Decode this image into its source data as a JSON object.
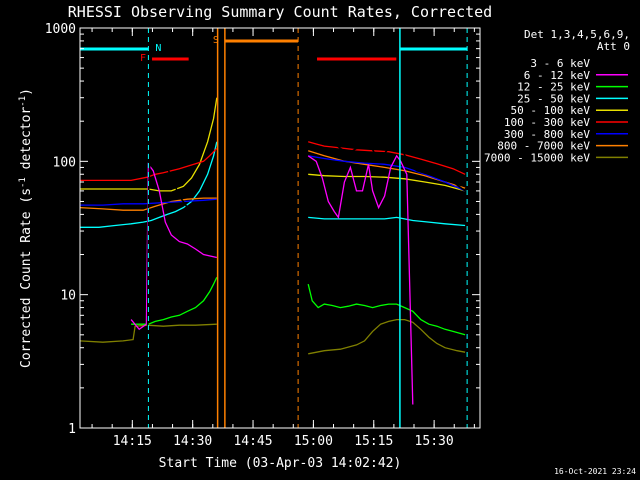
{
  "chart_data": {
    "type": "line",
    "title": "RHESSI Observing Summary Count Rates, Corrected",
    "xlabel": "Start Time (03-Apr-03 14:02:42)",
    "ylabel_main": "Corrected Count Rate (s",
    "ylabel_sup1": "-1",
    "ylabel_mid": " detector",
    "ylabel_sup2": "-1",
    "ylabel_end": ")",
    "yscale": "log",
    "ylim": [
      1,
      1000
    ],
    "xlim_minutes": [
      -0.7,
      98.7
    ],
    "x_ticks": [
      {
        "minute": 12.3,
        "label": "14:15"
      },
      {
        "minute": 27.3,
        "label": "14:30"
      },
      {
        "minute": 42.3,
        "label": "14:45"
      },
      {
        "minute": 57.3,
        "label": "15:00"
      },
      {
        "minute": 72.3,
        "label": "15:15"
      },
      {
        "minute": 87.3,
        "label": "15:30"
      }
    ],
    "y_ticks": [
      {
        "value": 1,
        "label": "1"
      },
      {
        "value": 10,
        "label": "10"
      },
      {
        "value": 100,
        "label": "100"
      },
      {
        "value": 1000,
        "label": "1000"
      }
    ],
    "legend": {
      "header1": "Det 1,3,4,5,6,9,",
      "header2": "Att 0",
      "entries": [
        {
          "label": "3 - 6 keV",
          "color": "#000000"
        },
        {
          "label": "6 - 12 keV",
          "color": "#ff00ff"
        },
        {
          "label": "12 - 25 keV",
          "color": "#00ff00"
        },
        {
          "label": "25 - 50 keV",
          "color": "#00ffff"
        },
        {
          "label": "50 - 100 keV",
          "color": "#e8e000"
        },
        {
          "label": "100 - 300 keV",
          "color": "#ff0000"
        },
        {
          "label": "300 - 800 keV",
          "color": "#0000ff"
        },
        {
          "label": "800 - 7000 keV",
          "color": "#ff8000"
        },
        {
          "label": "7000 - 15000 keV",
          "color": "#808000"
        }
      ]
    },
    "flags": [
      {
        "label": "N",
        "color": "#00ffff",
        "start": -0.7,
        "end": 16.3
      },
      {
        "label": "N",
        "color": "#00ffff",
        "start": 78.8,
        "end": 95.5
      },
      {
        "label": "F",
        "color": "#ff0000",
        "start": 17.2,
        "end": 26.3
      },
      {
        "label": "F",
        "color": "#ff0000",
        "start": 58.2,
        "end": 77.9
      },
      {
        "label": "S",
        "color": "#ff8000",
        "start": 35.3,
        "end": 53.5
      }
    ],
    "vlines": [
      {
        "minute": 16.3,
        "color": "#00ffff",
        "dashed": true
      },
      {
        "minute": 95.5,
        "color": "#00ffff",
        "dashed": true
      },
      {
        "minute": 53.5,
        "color": "#ff8000",
        "dashed": true
      },
      {
        "minute": 33.5,
        "color": "#ff8000",
        "dashed": false
      },
      {
        "minute": 35.3,
        "color": "#ff8000",
        "dashed": false
      },
      {
        "minute": 78.8,
        "color": "#00ffff",
        "dashed": false
      }
    ],
    "series": [
      {
        "name": "3 - 6 keV",
        "color": "#000000",
        "points": [
          [
            16.0,
            1.2
          ],
          [
            16.3,
            55
          ],
          [
            17.0,
            170
          ],
          [
            18.0,
            140
          ],
          [
            19.5,
            115
          ],
          [
            21.0,
            90
          ],
          [
            22.5,
            70
          ],
          [
            24.0,
            55
          ],
          [
            26.0,
            45
          ],
          [
            28.0,
            42
          ],
          [
            30.0,
            38
          ],
          [
            32.5,
            35
          ],
          [
            33.3,
            30
          ],
          [
            56.0,
            205
          ],
          [
            57.0,
            175
          ],
          [
            58.5,
            160
          ],
          [
            60.0,
            150
          ],
          [
            62.0,
            140
          ],
          [
            64.0,
            125
          ],
          [
            66.0,
            115
          ],
          [
            68.0,
            125
          ],
          [
            70.0,
            155
          ],
          [
            71.0,
            140
          ],
          [
            72.5,
            115
          ],
          [
            74.0,
            105
          ],
          [
            75.5,
            120
          ],
          [
            77.0,
            135
          ],
          [
            78.0,
            140
          ],
          [
            79.0,
            130
          ],
          [
            81.0,
            95
          ],
          [
            83.0,
            85
          ],
          [
            86.0,
            80
          ],
          [
            89.0,
            75
          ],
          [
            92.0,
            70
          ],
          [
            95.0,
            60
          ]
        ]
      },
      {
        "name": "6 - 12 keV",
        "color": "#ff00ff",
        "points": [
          [
            12.0,
            6.5
          ],
          [
            14.0,
            5.5
          ],
          [
            15.8,
            6.0
          ],
          [
            16.3,
            95
          ],
          [
            17.5,
            85
          ],
          [
            19.0,
            60
          ],
          [
            20.5,
            35
          ],
          [
            22.0,
            28
          ],
          [
            24.0,
            25
          ],
          [
            26.0,
            24
          ],
          [
            28.0,
            22
          ],
          [
            30.0,
            20
          ],
          [
            33.3,
            19
          ],
          [
            56.0,
            110
          ],
          [
            58.0,
            100
          ],
          [
            59.5,
            75
          ],
          [
            61.0,
            50
          ],
          [
            62.5,
            42
          ],
          [
            63.5,
            38
          ],
          [
            65.0,
            70
          ],
          [
            66.5,
            90
          ],
          [
            68.0,
            60
          ],
          [
            69.5,
            60
          ],
          [
            71.0,
            95
          ],
          [
            72.0,
            60
          ],
          [
            73.5,
            45
          ],
          [
            75.0,
            55
          ],
          [
            76.5,
            90
          ],
          [
            78.0,
            110
          ],
          [
            79.0,
            100
          ],
          [
            80.5,
            80
          ],
          [
            82.0,
            1.5
          ]
        ]
      },
      {
        "name": "12 - 25 keV",
        "color": "#00ff00",
        "points": [
          [
            12.0,
            6.0
          ],
          [
            16.3,
            6.0
          ],
          [
            18.0,
            6.3
          ],
          [
            20.0,
            6.5
          ],
          [
            22.0,
            6.8
          ],
          [
            24.0,
            7.0
          ],
          [
            26.0,
            7.5
          ],
          [
            28.0,
            8.0
          ],
          [
            30.0,
            9.0
          ],
          [
            31.5,
            10.5
          ],
          [
            32.5,
            12.0
          ],
          [
            33.3,
            13.5
          ],
          [
            56.0,
            12.0
          ],
          [
            57.0,
            9.0
          ],
          [
            58.5,
            8.0
          ],
          [
            60.0,
            8.5
          ],
          [
            62.0,
            8.3
          ],
          [
            64.0,
            8.0
          ],
          [
            66.0,
            8.2
          ],
          [
            68.0,
            8.5
          ],
          [
            70.0,
            8.3
          ],
          [
            72.0,
            8.0
          ],
          [
            74.0,
            8.3
          ],
          [
            76.0,
            8.5
          ],
          [
            78.0,
            8.5
          ],
          [
            80.0,
            8.0
          ],
          [
            82.0,
            7.5
          ],
          [
            84.0,
            6.5
          ],
          [
            86.0,
            6.0
          ],
          [
            88.0,
            5.8
          ],
          [
            90.0,
            5.5
          ],
          [
            92.0,
            5.3
          ],
          [
            95.0,
            5.0
          ]
        ]
      },
      {
        "name": "25 - 50 keV",
        "color": "#00ffff",
        "points": [
          [
            -0.7,
            32
          ],
          [
            4.0,
            32
          ],
          [
            8.0,
            33
          ],
          [
            12.0,
            34
          ],
          [
            15.0,
            35
          ],
          [
            17.0,
            36
          ],
          [
            19.0,
            38
          ],
          [
            21.0,
            40
          ],
          [
            23.0,
            42
          ],
          [
            25.0,
            45
          ],
          [
            27.0,
            50
          ],
          [
            29.0,
            60
          ],
          [
            31.0,
            80
          ],
          [
            32.5,
            110
          ],
          [
            33.3,
            140
          ],
          [
            56.0,
            38
          ],
          [
            60.0,
            37
          ],
          [
            65.0,
            37
          ],
          [
            70.0,
            37
          ],
          [
            75.0,
            37
          ],
          [
            78.0,
            38
          ],
          [
            82.0,
            36
          ],
          [
            86.0,
            35
          ],
          [
            90.0,
            34
          ],
          [
            95.0,
            33
          ]
        ]
      },
      {
        "name": "50 - 100 keV",
        "color": "#e8e000",
        "points": [
          [
            -0.7,
            62
          ],
          [
            4.0,
            62
          ],
          [
            8.0,
            62
          ],
          [
            12.0,
            62
          ],
          [
            16.3,
            62
          ],
          [
            19.0,
            60
          ],
          [
            22.0,
            60
          ],
          [
            25.0,
            65
          ],
          [
            27.0,
            75
          ],
          [
            29.0,
            95
          ],
          [
            31.0,
            140
          ],
          [
            32.5,
            210
          ],
          [
            33.3,
            300
          ],
          [
            56.0,
            80
          ],
          [
            60.0,
            78
          ],
          [
            65.0,
            77
          ],
          [
            70.0,
            77
          ],
          [
            75.0,
            76
          ],
          [
            80.0,
            74
          ],
          [
            85.0,
            70
          ],
          [
            90.0,
            66
          ],
          [
            95.0,
            60
          ]
        ]
      },
      {
        "name": "100 - 300 keV",
        "color": "#ff0000",
        "points": [
          [
            -0.7,
            72
          ],
          [
            4.0,
            72
          ],
          [
            8.0,
            72
          ],
          [
            12.0,
            72
          ],
          [
            16.0,
            76
          ],
          [
            18.0,
            80
          ],
          [
            20.0,
            82
          ],
          [
            22.0,
            85
          ],
          [
            24.0,
            88
          ],
          [
            26.0,
            92
          ],
          [
            28.0,
            96
          ],
          [
            30.0,
            100
          ],
          [
            31.5,
            110
          ],
          [
            33.3,
            125
          ],
          [
            56.0,
            140
          ],
          [
            58.0,
            135
          ],
          [
            60.0,
            130
          ],
          [
            62.0,
            128
          ],
          [
            65.0,
            125
          ],
          [
            68.0,
            122
          ],
          [
            72.0,
            120
          ],
          [
            76.0,
            118
          ],
          [
            80.0,
            112
          ],
          [
            84.0,
            104
          ],
          [
            88.0,
            96
          ],
          [
            92.0,
            88
          ],
          [
            95.0,
            80
          ]
        ]
      },
      {
        "name": "300 - 800 keV",
        "color": "#0000ff",
        "points": [
          [
            -0.7,
            47
          ],
          [
            5.0,
            47
          ],
          [
            10.0,
            48
          ],
          [
            15.0,
            48
          ],
          [
            20.0,
            49
          ],
          [
            25.0,
            50
          ],
          [
            30.0,
            51
          ],
          [
            33.3,
            52
          ],
          [
            56.0,
            110
          ],
          [
            60.0,
            105
          ],
          [
            65.0,
            100
          ],
          [
            70.0,
            97
          ],
          [
            75.0,
            95
          ],
          [
            80.0,
            90
          ],
          [
            85.0,
            80
          ],
          [
            90.0,
            70
          ],
          [
            95.0,
            60
          ]
        ]
      },
      {
        "name": "800 - 7000 keV",
        "color": "#ff8000",
        "points": [
          [
            -0.7,
            45
          ],
          [
            5.0,
            44
          ],
          [
            10.0,
            43
          ],
          [
            15.0,
            43
          ],
          [
            18.0,
            46
          ],
          [
            22.0,
            50
          ],
          [
            26.0,
            52
          ],
          [
            30.0,
            53
          ],
          [
            33.3,
            53
          ],
          [
            56.0,
            120
          ],
          [
            60.0,
            110
          ],
          [
            65.0,
            100
          ],
          [
            70.0,
            95
          ],
          [
            75.0,
            90
          ],
          [
            80.0,
            85
          ],
          [
            85.0,
            78
          ],
          [
            90.0,
            70
          ],
          [
            95.0,
            63
          ]
        ]
      },
      {
        "name": "7000 - 15000 keV",
        "color": "#808000",
        "points": [
          [
            -0.7,
            4.5
          ],
          [
            5.0,
            4.4
          ],
          [
            10.0,
            4.5
          ],
          [
            12.5,
            4.6
          ],
          [
            13.0,
            5.8
          ],
          [
            16.0,
            5.9
          ],
          [
            20.0,
            5.8
          ],
          [
            24.0,
            5.9
          ],
          [
            28.0,
            5.9
          ],
          [
            33.3,
            6.0
          ],
          [
            56.0,
            3.6
          ],
          [
            60.0,
            3.8
          ],
          [
            64.0,
            3.9
          ],
          [
            68.0,
            4.2
          ],
          [
            70.0,
            4.5
          ],
          [
            72.0,
            5.3
          ],
          [
            74.0,
            6.0
          ],
          [
            76.0,
            6.3
          ],
          [
            78.0,
            6.5
          ],
          [
            80.0,
            6.5
          ],
          [
            82.0,
            6.2
          ],
          [
            84.0,
            5.5
          ],
          [
            86.0,
            4.8
          ],
          [
            88.0,
            4.3
          ],
          [
            90.0,
            4.0
          ],
          [
            93.0,
            3.8
          ],
          [
            95.0,
            3.7
          ]
        ]
      }
    ]
  },
  "footer": {
    "timestamp": "16-Oct-2021 23:24"
  }
}
